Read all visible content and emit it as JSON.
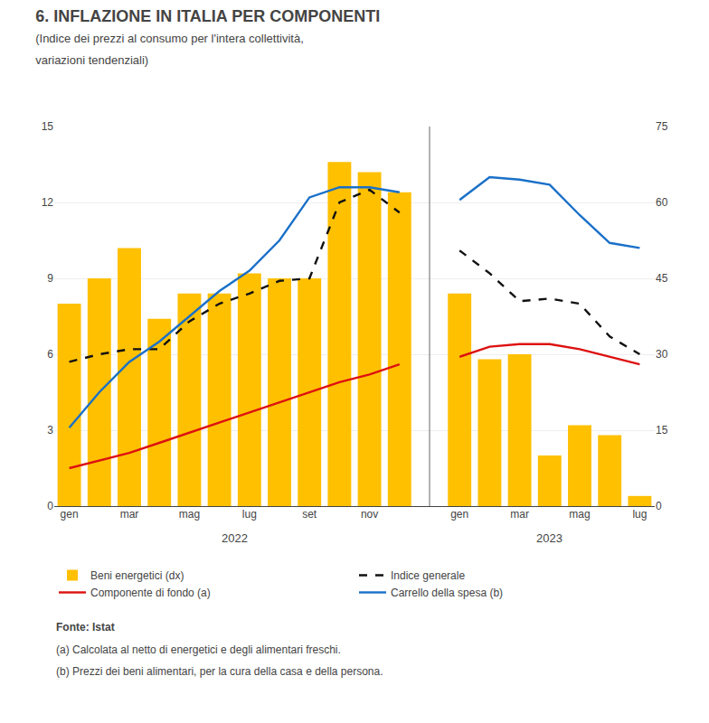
{
  "chart_data": {
    "type": "bar",
    "title": "6. INFLAZIONE IN ITALIA PER COMPONENTI",
    "subtitle": "(Indice dei prezzi al consumo per l'intera collettività,\nvariazioni tendenziali)",
    "categories": [
      "gen",
      null,
      "mar",
      null,
      "mag",
      null,
      "lug",
      null,
      "set",
      null,
      "nov",
      null,
      null,
      "gen",
      null,
      "mar",
      null,
      "mag",
      null,
      "lug"
    ],
    "annotations": [
      "2022",
      "2023"
    ],
    "source": "Fonte: Istat",
    "notes": [
      "(a) Calcolata al netto di energetici e degli alimentari freschi.",
      "(b) Prezzi dei beni alimentari, per la cura della casa e della persona."
    ],
    "series": [
      {
        "name": "Beni energetici (dx)",
        "type": "bar",
        "axis": "y2",
        "color": "#FFC000",
        "values": [
          40,
          45,
          51,
          37,
          42,
          42,
          46,
          45,
          45,
          68,
          66,
          62,
          null,
          42,
          29,
          30,
          10,
          16,
          14,
          2
        ]
      },
      {
        "name": "Indice generale",
        "type": "line",
        "line_style": "dashed",
        "color": "#111111",
        "values": [
          5.7,
          6.0,
          6.2,
          6.2,
          7.3,
          8.0,
          8.4,
          8.9,
          9.0,
          12.0,
          12.5,
          11.6,
          null,
          10.1,
          9.2,
          8.1,
          8.2,
          8.0,
          6.7,
          6.0
        ]
      },
      {
        "name": "Componente di fondo (a)",
        "type": "line",
        "line_style": "solid",
        "color": "#dd1111",
        "values": [
          1.5,
          1.8,
          2.1,
          2.5,
          2.9,
          3.3,
          3.7,
          4.1,
          4.5,
          4.9,
          5.2,
          5.6,
          null,
          5.9,
          6.3,
          6.4,
          6.4,
          6.2,
          5.9,
          5.6
        ]
      },
      {
        "name": "Carrello della spesa (b)",
        "type": "line",
        "line_style": "solid",
        "color": "#1a70c8",
        "values": [
          3.1,
          4.5,
          5.7,
          6.5,
          7.5,
          8.5,
          9.3,
          10.5,
          12.2,
          12.6,
          12.6,
          12.4,
          null,
          12.1,
          13.0,
          12.9,
          12.7,
          11.5,
          10.4,
          10.2
        ]
      }
    ],
    "ylim": [
      0,
      15
    ],
    "yticks": [
      0,
      3,
      6,
      9,
      12,
      15
    ],
    "y2lim": [
      0,
      75
    ],
    "y2ticks": [
      0,
      15,
      30,
      45,
      60,
      75
    ],
    "grid": true,
    "legend": "bottom"
  }
}
